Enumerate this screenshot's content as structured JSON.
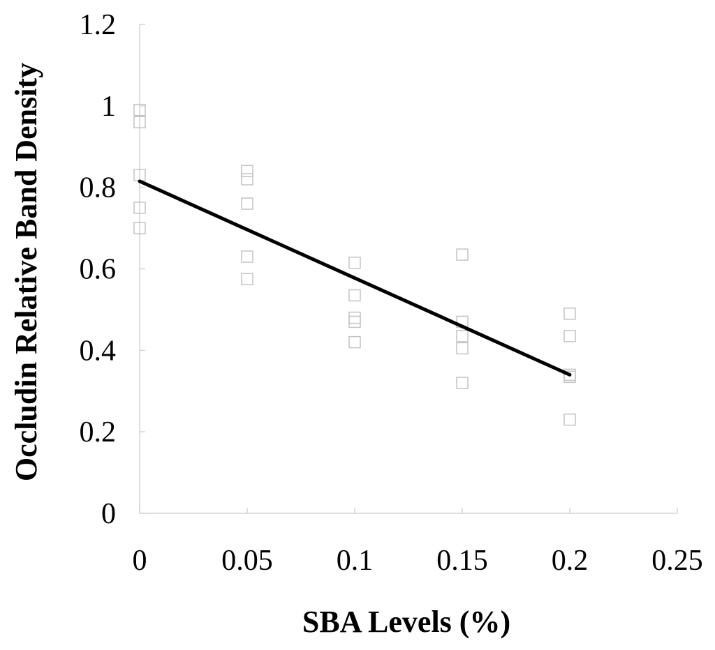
{
  "chart_data": {
    "type": "scatter",
    "title": "",
    "xlabel": "SBA Levels (%)",
    "ylabel": "Occludin Relative Band Density",
    "xlim": [
      0,
      0.25
    ],
    "ylim": [
      0,
      1.2
    ],
    "x_ticks": [
      "0",
      "0.05",
      "0.1",
      "0.15",
      "0.2",
      "0.25"
    ],
    "y_ticks": [
      "0",
      "0.2",
      "0.4",
      "0.6",
      "0.8",
      "1",
      "1.2"
    ],
    "grid": false,
    "legend": "none",
    "marker": "open-square",
    "points": [
      {
        "x": 0,
        "y": 0.99
      },
      {
        "x": 0,
        "y": 0.96
      },
      {
        "x": 0,
        "y": 0.83
      },
      {
        "x": 0,
        "y": 0.75
      },
      {
        "x": 0,
        "y": 0.7
      },
      {
        "x": 0.05,
        "y": 0.84
      },
      {
        "x": 0.05,
        "y": 0.82
      },
      {
        "x": 0.05,
        "y": 0.76
      },
      {
        "x": 0.05,
        "y": 0.63
      },
      {
        "x": 0.05,
        "y": 0.575
      },
      {
        "x": 0.1,
        "y": 0.615
      },
      {
        "x": 0.1,
        "y": 0.535
      },
      {
        "x": 0.1,
        "y": 0.48
      },
      {
        "x": 0.1,
        "y": 0.47
      },
      {
        "x": 0.1,
        "y": 0.42
      },
      {
        "x": 0.15,
        "y": 0.635
      },
      {
        "x": 0.15,
        "y": 0.47
      },
      {
        "x": 0.15,
        "y": 0.435
      },
      {
        "x": 0.15,
        "y": 0.405
      },
      {
        "x": 0.15,
        "y": 0.32
      },
      {
        "x": 0.2,
        "y": 0.49
      },
      {
        "x": 0.2,
        "y": 0.435
      },
      {
        "x": 0.2,
        "y": 0.34
      },
      {
        "x": 0.2,
        "y": 0.335
      },
      {
        "x": 0.2,
        "y": 0.23
      }
    ],
    "trendline": {
      "x": [
        0,
        0.2
      ],
      "y": [
        0.815,
        0.34
      ]
    }
  }
}
